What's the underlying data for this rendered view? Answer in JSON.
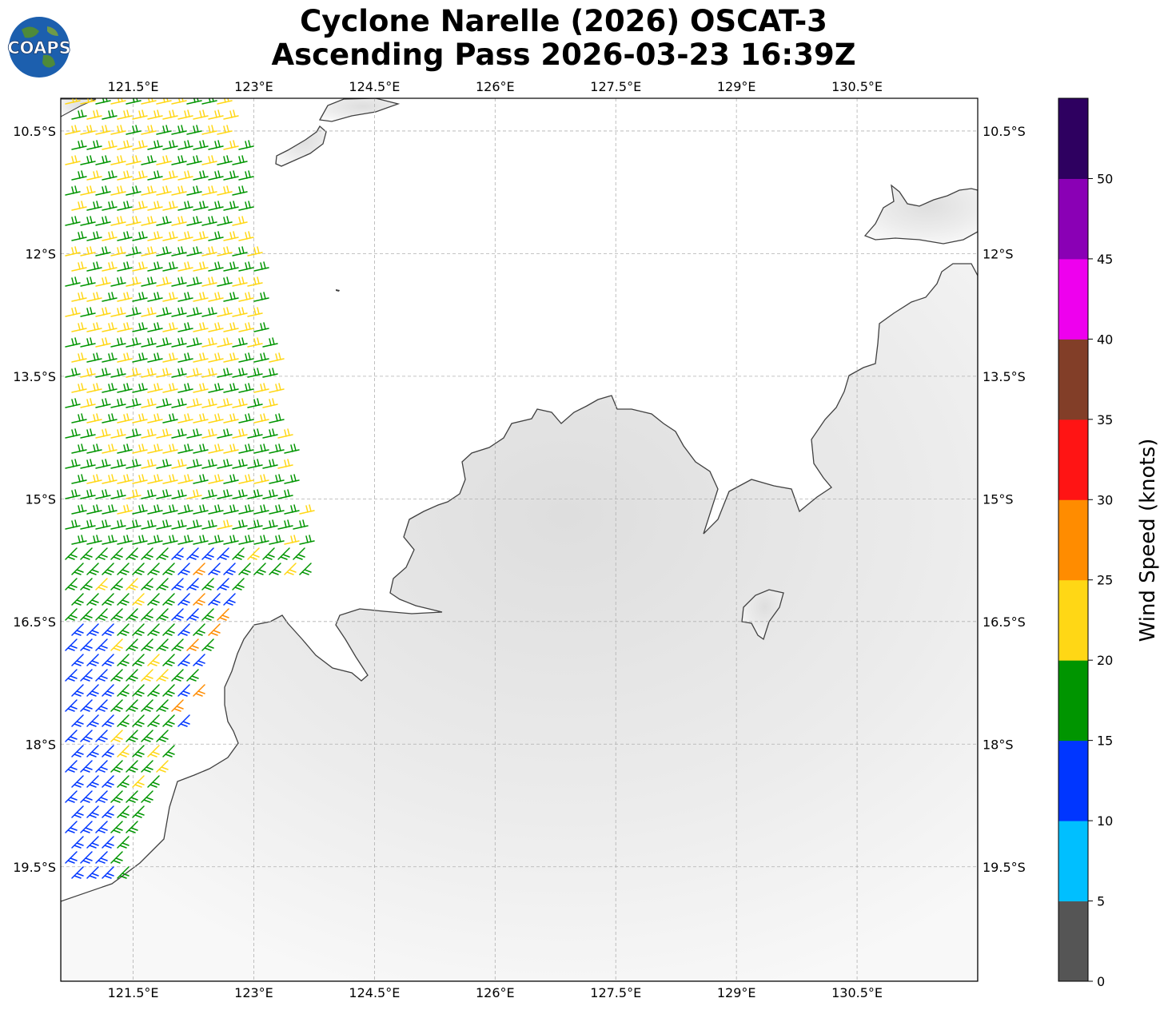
{
  "title": {
    "line1": "Cyclone Narelle (2026) OSCAT-3",
    "line2": "Ascending Pass 2026-03-23 16:39Z"
  },
  "logo": {
    "text": "COAPS"
  },
  "map": {
    "lon_range": [
      120.6,
      132.0
    ],
    "lat_range": [
      -20.9,
      -10.1
    ],
    "lon_ticks": [
      "121.5°E",
      "123°E",
      "124.5°E",
      "126°E",
      "127.5°E",
      "129°E",
      "130.5°E"
    ],
    "lon_tick_values": [
      121.5,
      123,
      124.5,
      126,
      127.5,
      129,
      130.5
    ],
    "lat_ticks": [
      "10.5°S",
      "12°S",
      "13.5°S",
      "15°S",
      "16.5°S",
      "18°S",
      "19.5°S"
    ],
    "lat_tick_values": [
      -10.5,
      -12,
      -13.5,
      -15,
      -16.5,
      -18,
      -19.5
    ],
    "gridlines": true,
    "land_color": "#f0f0f0",
    "coast_color": "#404040"
  },
  "colorbar": {
    "label": "Wind Speed (knots)",
    "ticks": [
      "0",
      "5",
      "10",
      "15",
      "20",
      "25",
      "30",
      "35",
      "40",
      "45",
      "50"
    ],
    "colors": [
      "#555555",
      "#00bfff",
      "#0036ff",
      "#009500",
      "#ffd715",
      "#ff8c00",
      "#ff1414",
      "#823e28",
      "#ee00ee",
      "#8a00b5",
      "#2e0060"
    ]
  }
}
